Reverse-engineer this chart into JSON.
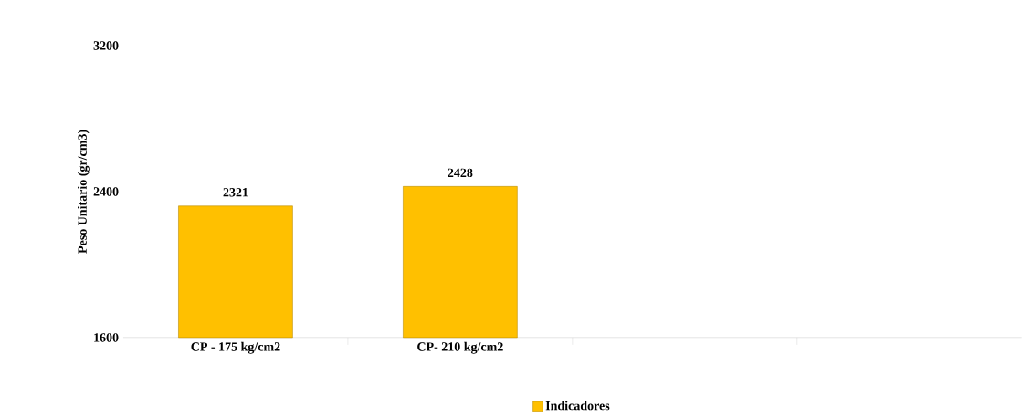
{
  "chart_data": {
    "type": "bar",
    "ylabel": "Peso Unitario (gr/cm3)",
    "categories": [
      "CP - 175 kg/cm2",
      "CP- 210 kg/cm2",
      null,
      null
    ],
    "series": [
      {
        "name": "Indicadores",
        "color": "#ffc000",
        "values": [
          2321,
          2428,
          null,
          null
        ]
      }
    ],
    "ylim": [
      1600,
      3200
    ],
    "yticks": [
      1600,
      2400,
      3200
    ],
    "data_labels": true,
    "legend": "bottom"
  }
}
